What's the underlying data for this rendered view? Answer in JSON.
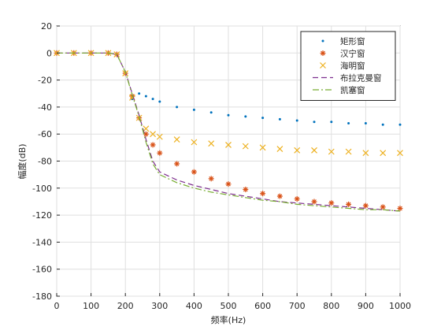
{
  "chart_data": {
    "type": "line",
    "title": "",
    "xlabel": "频率(Hz)",
    "ylabel": "幅度(dB)",
    "xlim": [
      0,
      1000
    ],
    "ylim": [
      -180,
      20
    ],
    "x_ticks": [
      0,
      100,
      200,
      300,
      400,
      500,
      600,
      700,
      800,
      900,
      1000
    ],
    "y_ticks": [
      20,
      0,
      -20,
      -40,
      -60,
      -80,
      -100,
      -120,
      -140,
      -160,
      -180
    ],
    "grid": true,
    "legend_position": "top-right",
    "series": [
      {
        "name": "矩形窗",
        "marker": "dot",
        "color": "#0072BD",
        "x": [
          0,
          50,
          100,
          150,
          175,
          200,
          220,
          240,
          260,
          280,
          300,
          350,
          400,
          450,
          500,
          550,
          600,
          650,
          700,
          750,
          800,
          850,
          900,
          950,
          1000
        ],
        "y": [
          0,
          0,
          0,
          0,
          -1,
          -15,
          -34,
          -30,
          -32,
          -34,
          -36,
          -40,
          -42,
          -44,
          -46,
          -47,
          -48,
          -49,
          -50,
          -51,
          -51,
          -52,
          -52,
          -53,
          -53
        ]
      },
      {
        "name": "汉宁窗",
        "marker": "asterisk",
        "color": "#D95319",
        "x": [
          0,
          50,
          100,
          150,
          175,
          200,
          220,
          240,
          260,
          280,
          300,
          350,
          400,
          450,
          500,
          550,
          600,
          650,
          700,
          750,
          800,
          850,
          900,
          950,
          1000
        ],
        "y": [
          0,
          0,
          0,
          0,
          -1,
          -15,
          -32,
          -48,
          -60,
          -68,
          -74,
          -82,
          -88,
          -93,
          -97,
          -101,
          -104,
          -106,
          -108,
          -110,
          -111,
          -112,
          -113,
          -114,
          -115
        ]
      },
      {
        "name": "海明窗",
        "marker": "x",
        "color": "#EDB120",
        "x": [
          0,
          50,
          100,
          150,
          175,
          200,
          220,
          240,
          260,
          280,
          300,
          350,
          400,
          450,
          500,
          550,
          600,
          650,
          700,
          750,
          800,
          850,
          900,
          950,
          1000
        ],
        "y": [
          0,
          0,
          0,
          0,
          -1,
          -15,
          -33,
          -48,
          -56,
          -60,
          -62,
          -64,
          -66,
          -67,
          -68,
          -69,
          -70,
          -71,
          -72,
          -72,
          -73,
          -73,
          -74,
          -74,
          -74
        ]
      },
      {
        "name": "布拉克曼窗",
        "marker": "dash",
        "color": "#7E2F8E",
        "x": [
          0,
          50,
          100,
          150,
          175,
          200,
          220,
          240,
          260,
          280,
          300,
          350,
          400,
          450,
          500,
          550,
          600,
          650,
          700,
          750,
          800,
          850,
          900,
          950,
          1000
        ],
        "y": [
          0,
          0,
          0,
          0,
          -1,
          -14,
          -30,
          -46,
          -64,
          -80,
          -88,
          -94,
          -98,
          -101,
          -104,
          -106,
          -108,
          -110,
          -111,
          -112,
          -113,
          -114,
          -115,
          -116,
          -117
        ]
      },
      {
        "name": "凯塞窗",
        "marker": "dashdot",
        "color": "#77AC30",
        "x": [
          0,
          50,
          100,
          150,
          175,
          200,
          220,
          240,
          260,
          280,
          300,
          350,
          400,
          450,
          500,
          550,
          600,
          650,
          700,
          750,
          800,
          850,
          900,
          950,
          1000
        ],
        "y": [
          0,
          0,
          0,
          0,
          -1,
          -14,
          -31,
          -47,
          -66,
          -82,
          -90,
          -96,
          -100,
          -103,
          -105,
          -107,
          -109,
          -110,
          -112,
          -113,
          -114,
          -115,
          -116,
          -116,
          -117
        ]
      }
    ]
  }
}
